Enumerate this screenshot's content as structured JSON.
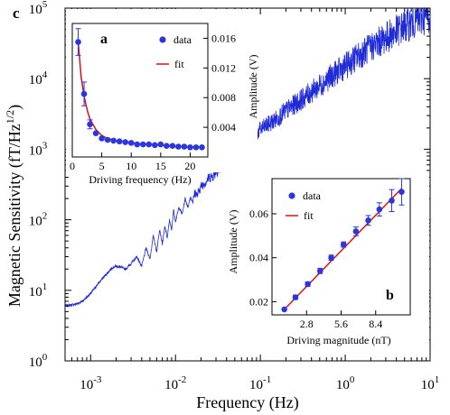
{
  "panel_label": "c",
  "chart_data": [
    {
      "id": "main",
      "type": "line",
      "xlabel": "Frequency (Hz)",
      "ylabel": "Magnetic Sensitivity (fT/Hz",
      "ylabel_sup": "1/2",
      "ylabel_close": ")",
      "xscale": "log",
      "yscale": "log",
      "xlim": [
        0.0005,
        10
      ],
      "ylim": [
        1,
        100000
      ],
      "x_ticks": [
        {
          "value": 0.001,
          "base": "10",
          "exp": "-3"
        },
        {
          "value": 0.01,
          "base": "10",
          "exp": "-2"
        },
        {
          "value": 0.1,
          "base": "10",
          "exp": "-1"
        },
        {
          "value": 1,
          "base": "10",
          "exp": "0"
        },
        {
          "value": 10,
          "base": "10",
          "exp": "1"
        }
      ],
      "y_ticks": [
        {
          "value": 1,
          "base": "10",
          "exp": "0"
        },
        {
          "value": 10,
          "base": "10",
          "exp": "1"
        },
        {
          "value": 100,
          "base": "10",
          "exp": "2"
        },
        {
          "value": 1000,
          "base": "10",
          "exp": "3"
        },
        {
          "value": 10000,
          "base": "10",
          "exp": "4"
        },
        {
          "value": 100000,
          "base": "10",
          "exp": "5"
        }
      ],
      "color": "#1f2bd6",
      "series": [
        {
          "x": [
            0.0005,
            0.0006,
            0.0007,
            0.0008,
            0.0009,
            0.001,
            0.0012,
            0.0014,
            0.0016,
            0.0018,
            0.002,
            0.0023,
            0.0026,
            0.003,
            0.0035,
            0.004,
            0.0045,
            0.005,
            0.0055,
            0.006,
            0.0065,
            0.007,
            0.0075,
            0.008,
            0.0085,
            0.009,
            0.0095,
            0.01,
            0.011,
            0.012,
            0.013,
            0.014,
            0.015,
            0.016,
            0.017,
            0.018,
            0.02,
            0.022,
            0.025,
            0.028,
            0.03,
            0.035,
            0.04,
            0.05,
            0.06,
            0.07,
            0.08,
            0.1,
            0.12,
            0.15,
            0.2,
            0.3,
            0.4,
            0.5,
            0.7,
            1,
            1.5,
            2,
            3,
            4,
            5,
            7,
            10
          ],
          "y": [
            6,
            6.2,
            6.5,
            7,
            8,
            9,
            12,
            15,
            18,
            21,
            22,
            21,
            20,
            24,
            30,
            22,
            40,
            28,
            60,
            35,
            75,
            45,
            80,
            55,
            100,
            70,
            140,
            95,
            150,
            120,
            200,
            150,
            210,
            180,
            250,
            220,
            300,
            330,
            400,
            420,
            480,
            550,
            650,
            900,
            1050,
            1250,
            1450,
            1900,
            2200,
            2600,
            3500,
            5000,
            6500,
            8000,
            11000,
            15000,
            22000,
            28000,
            38000,
            47000,
            55000,
            68000,
            80000
          ]
        }
      ]
    },
    {
      "id": "inset_a",
      "type": "scatter",
      "label": "a",
      "xlabel": "Driving frequency (Hz)",
      "ylabel": "Amplitude (V)",
      "xlim": [
        0,
        23
      ],
      "ylim": [
        0,
        0.018
      ],
      "x_ticks": [
        0,
        5,
        10,
        15,
        20
      ],
      "y_ticks": [
        0.004,
        0.008,
        0.012,
        0.016
      ],
      "y_tick_labels": [
        "0.004",
        "0.008",
        "0.012",
        "0.016"
      ],
      "legend": [
        {
          "label": "data",
          "marker": "circle",
          "color": "#2b35e0"
        },
        {
          "label": "fit",
          "marker": "line",
          "color": "#e01010"
        }
      ],
      "series": [
        {
          "name": "data",
          "x": [
            1,
            2,
            3,
            4,
            5,
            6,
            7,
            8,
            9,
            10,
            11,
            12,
            13,
            14,
            15,
            16,
            17,
            18,
            19,
            20,
            21,
            22
          ],
          "y": [
            0.0155,
            0.0085,
            0.0044,
            0.0032,
            0.0025,
            0.0023,
            0.0022,
            0.0021,
            0.002,
            0.0019,
            0.0017,
            0.0017,
            0.0017,
            0.0016,
            0.0017,
            0.0015,
            0.0015,
            0.0014,
            0.0014,
            0.0013,
            0.0013,
            0.0013
          ],
          "yerr": [
            0.0018,
            0.0016,
            0.0006,
            0.0002,
            0.0002,
            0.0001,
            0.0001,
            0.0001,
            0.0001,
            0.0001,
            0.0001,
            0.0001,
            0.0001,
            0.0001,
            0.0001,
            0.0001,
            0.0001,
            0.0001,
            0.0001,
            0.0001,
            0.0001,
            0.0001
          ]
        },
        {
          "name": "fit",
          "x": [
            1,
            1.5,
            2,
            2.5,
            3,
            4,
            5,
            6,
            8,
            10,
            13,
            16,
            19,
            22
          ],
          "y": [
            0.0155,
            0.0108,
            0.0082,
            0.0064,
            0.0051,
            0.0037,
            0.0029,
            0.0025,
            0.0021,
            0.0019,
            0.0017,
            0.0015,
            0.0014,
            0.0013
          ]
        }
      ]
    },
    {
      "id": "inset_b",
      "type": "scatter",
      "label": "b",
      "xlabel": "Driving magnitude (nT)",
      "ylabel": "Amplitude (V)",
      "xlim": [
        0,
        11.2
      ],
      "ylim": [
        0.014,
        0.076
      ],
      "x_ticks": [
        2.8,
        5.6,
        8.4
      ],
      "x_tick_labels": [
        "2.8",
        "5.6",
        "8.4"
      ],
      "y_ticks": [
        0.02,
        0.04,
        0.06
      ],
      "y_tick_labels": [
        "0.02",
        "0.04",
        "0.06"
      ],
      "legend": [
        {
          "label": "data",
          "marker": "circle",
          "color": "#2b35e0"
        },
        {
          "label": "fit",
          "marker": "line",
          "color": "#e01010"
        }
      ],
      "series": [
        {
          "name": "data",
          "x": [
            1,
            1.9,
            2.9,
            3.9,
            4.8,
            5.8,
            6.8,
            7.8,
            8.7,
            9.7,
            10.5
          ],
          "y": [
            0.0165,
            0.022,
            0.028,
            0.034,
            0.04,
            0.046,
            0.052,
            0.057,
            0.062,
            0.066,
            0.07
          ],
          "yerr": [
            0.0008,
            0.001,
            0.001,
            0.0012,
            0.0012,
            0.0012,
            0.002,
            0.0022,
            0.003,
            0.005,
            0.006
          ]
        },
        {
          "name": "fit",
          "x": [
            1,
            10.5
          ],
          "y": [
            0.0165,
            0.0715
          ]
        }
      ]
    }
  ]
}
